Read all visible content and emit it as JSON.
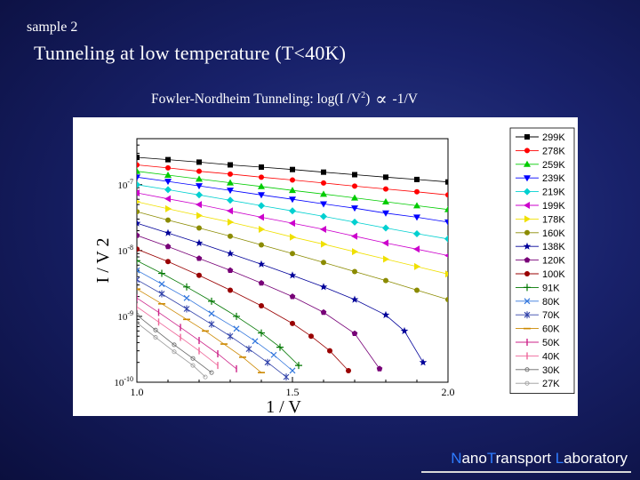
{
  "slide": {
    "label": "sample 2",
    "title": "Tunneling at low temperature (T<40K)",
    "subtitle_pre": "Fowler-Nordheim Tunneling:  log(I /V",
    "subtitle_sup": "2",
    "subtitle_post": ")",
    "subtitle_symbol": "∝",
    "subtitle_tail": "-1/V",
    "footer_n": "N",
    "footer_ano": "ano",
    "footer_t": "T",
    "footer_ransport": "ransport ",
    "footer_l": "L",
    "footer_aboratory": "aboratory"
  },
  "chart_data": {
    "type": "scatter",
    "title": "",
    "xlabel": "1 / V",
    "ylabel": "I / V 2",
    "y_scale": "log",
    "xlim": [
      1.0,
      2.0
    ],
    "ylim": [
      1e-10,
      5e-07
    ],
    "x_ticks": [
      "1.0",
      "1.5",
      "2.0"
    ],
    "y_ticks": [
      {
        "value": 1e-07,
        "label": "10",
        "exp": "-7"
      },
      {
        "value": 1e-08,
        "label": "10",
        "exp": "-8"
      },
      {
        "value": 1e-09,
        "label": "10",
        "exp": "-9"
      },
      {
        "value": 1e-10,
        "label": "10",
        "exp": "-10"
      }
    ],
    "legend_position": "right",
    "series": [
      {
        "name": "299K",
        "color": "#000000",
        "marker": "square",
        "x": [
          1.0,
          1.1,
          1.2,
          1.3,
          1.4,
          1.5,
          1.6,
          1.7,
          1.8,
          1.9,
          2.0
        ],
        "y": [
          2.6e-07,
          2.4e-07,
          2.2e-07,
          2e-07,
          1.85e-07,
          1.7e-07,
          1.55e-07,
          1.42e-07,
          1.3e-07,
          1.2e-07,
          1.1e-07
        ]
      },
      {
        "name": "278K",
        "color": "#ff0000",
        "marker": "circle",
        "x": [
          1.0,
          1.1,
          1.2,
          1.3,
          1.4,
          1.5,
          1.6,
          1.7,
          1.8,
          1.9,
          2.0
        ],
        "y": [
          2e-07,
          1.8e-07,
          1.6e-07,
          1.45e-07,
          1.3e-07,
          1.18e-07,
          1.06e-07,
          9.5e-08,
          8.6e-08,
          7.8e-08,
          7e-08
        ]
      },
      {
        "name": "259K",
        "color": "#00cc00",
        "marker": "triangle-up",
        "x": [
          1.0,
          1.1,
          1.2,
          1.3,
          1.4,
          1.5,
          1.6,
          1.7,
          1.8,
          1.9,
          2.0
        ],
        "y": [
          1.6e-07,
          1.4e-07,
          1.22e-07,
          1.07e-07,
          9.4e-08,
          8.2e-08,
          7.2e-08,
          6.3e-08,
          5.5e-08,
          4.8e-08,
          4.2e-08
        ]
      },
      {
        "name": "239K",
        "color": "#0000ff",
        "marker": "triangle-down",
        "x": [
          1.0,
          1.1,
          1.2,
          1.3,
          1.4,
          1.5,
          1.6,
          1.7,
          1.8,
          1.9,
          2.0
        ],
        "y": [
          1.3e-07,
          1.12e-07,
          9.6e-08,
          8.2e-08,
          7e-08,
          6e-08,
          5.1e-08,
          4.4e-08,
          3.7e-08,
          3.2e-08,
          2.7e-08
        ]
      },
      {
        "name": "219K",
        "color": "#00d0d0",
        "marker": "diamond",
        "x": [
          1.0,
          1.1,
          1.2,
          1.3,
          1.4,
          1.5,
          1.6,
          1.7,
          1.8,
          1.9,
          2.0
        ],
        "y": [
          1e-07,
          8.4e-08,
          7e-08,
          5.8e-08,
          4.8e-08,
          4e-08,
          3.3e-08,
          2.7e-08,
          2.2e-08,
          1.8e-08,
          1.5e-08
        ]
      },
      {
        "name": "199K",
        "color": "#cc00cc",
        "marker": "triangle-left",
        "x": [
          1.0,
          1.1,
          1.2,
          1.3,
          1.4,
          1.5,
          1.6,
          1.7,
          1.8,
          1.9,
          2.0
        ],
        "y": [
          7.5e-08,
          6.1e-08,
          5e-08,
          4e-08,
          3.2e-08,
          2.6e-08,
          2.1e-08,
          1.65e-08,
          1.3e-08,
          1.05e-08,
          8.4e-09
        ]
      },
      {
        "name": "178K",
        "color": "#f0e000",
        "marker": "triangle-right",
        "x": [
          1.0,
          1.1,
          1.2,
          1.3,
          1.4,
          1.5,
          1.6,
          1.7,
          1.8,
          1.9,
          2.0
        ],
        "y": [
          5.5e-08,
          4.3e-08,
          3.4e-08,
          2.7e-08,
          2.1e-08,
          1.6e-08,
          1.25e-08,
          9.6e-09,
          7.4e-09,
          5.7e-09,
          4.4e-09
        ]
      },
      {
        "name": "160K",
        "color": "#8b8b00",
        "marker": "circle",
        "x": [
          1.0,
          1.1,
          1.2,
          1.3,
          1.4,
          1.5,
          1.6,
          1.7,
          1.8,
          1.9,
          2.0
        ],
        "y": [
          3.9e-08,
          2.9e-08,
          2.2e-08,
          1.65e-08,
          1.22e-08,
          9e-09,
          6.6e-09,
          4.8e-09,
          3.5e-09,
          2.5e-09,
          1.8e-09
        ]
      },
      {
        "name": "138K",
        "color": "#000099",
        "marker": "star",
        "x": [
          1.0,
          1.1,
          1.2,
          1.3,
          1.4,
          1.5,
          1.6,
          1.7,
          1.8,
          1.86,
          1.92
        ],
        "y": [
          2.6e-08,
          1.85e-08,
          1.3e-08,
          9e-09,
          6.2e-09,
          4.2e-09,
          2.8e-09,
          1.8e-09,
          1.05e-09,
          6e-10,
          2e-10
        ]
      },
      {
        "name": "120K",
        "color": "#770077",
        "marker": "pentagon",
        "x": [
          1.0,
          1.1,
          1.2,
          1.3,
          1.4,
          1.5,
          1.6,
          1.7,
          1.78
        ],
        "y": [
          1.7e-08,
          1.15e-08,
          7.6e-09,
          5e-09,
          3.2e-09,
          2e-09,
          1.15e-09,
          5.5e-10,
          1.6e-10
        ]
      },
      {
        "name": "100K",
        "color": "#990000",
        "marker": "circle",
        "x": [
          1.0,
          1.1,
          1.2,
          1.3,
          1.4,
          1.5,
          1.56,
          1.62,
          1.68
        ],
        "y": [
          1.05e-08,
          6.8e-09,
          4.2e-09,
          2.5e-09,
          1.45e-09,
          7.8e-10,
          5e-10,
          3e-10,
          1.5e-10
        ]
      },
      {
        "name": "91K",
        "color": "#007700",
        "marker": "plus",
        "x": [
          1.0,
          1.08,
          1.16,
          1.24,
          1.32,
          1.4,
          1.46,
          1.52
        ],
        "y": [
          7e-09,
          4.5e-09,
          2.8e-09,
          1.7e-09,
          1e-09,
          5.6e-10,
          3.4e-10,
          1.8e-10
        ]
      },
      {
        "name": "80K",
        "color": "#3377dd",
        "marker": "x",
        "x": [
          1.0,
          1.08,
          1.16,
          1.24,
          1.32,
          1.38,
          1.44,
          1.5
        ],
        "y": [
          5e-09,
          3.1e-09,
          1.9e-09,
          1.1e-09,
          6.5e-10,
          4.2e-10,
          2.6e-10,
          1.5e-10
        ]
      },
      {
        "name": "70K",
        "color": "#3344aa",
        "marker": "asterisk",
        "x": [
          1.0,
          1.08,
          1.16,
          1.24,
          1.3,
          1.36,
          1.42,
          1.48
        ],
        "y": [
          3.6e-09,
          2.2e-09,
          1.3e-09,
          7.6e-10,
          5e-10,
          3.2e-10,
          2e-10,
          1.2e-10
        ]
      },
      {
        "name": "60K",
        "color": "#cc8800",
        "marker": "dash",
        "x": [
          1.0,
          1.08,
          1.16,
          1.22,
          1.28,
          1.34,
          1.4
        ],
        "y": [
          2.6e-09,
          1.55e-09,
          9e-10,
          6e-10,
          3.8e-10,
          2.4e-10,
          1.4e-10
        ]
      },
      {
        "name": "50K",
        "color": "#cc2288",
        "marker": "vline",
        "x": [
          1.0,
          1.07,
          1.14,
          1.2,
          1.26,
          1.32
        ],
        "y": [
          1.9e-09,
          1.15e-09,
          6.8e-10,
          4.3e-10,
          2.7e-10,
          1.6e-10
        ]
      },
      {
        "name": "40K",
        "color": "#ee6699",
        "marker": "vline",
        "x": [
          1.0,
          1.07,
          1.14,
          1.2,
          1.26
        ],
        "y": [
          1.4e-09,
          8.2e-10,
          4.8e-10,
          3e-10,
          1.8e-10
        ]
      },
      {
        "name": "30K",
        "color": "#666666",
        "marker": "text",
        "x": [
          1.0,
          1.06,
          1.12,
          1.18,
          1.24
        ],
        "y": [
          1.05e-09,
          6.2e-10,
          3.7e-10,
          2.3e-10,
          1.4e-10
        ]
      },
      {
        "name": "27K",
        "color": "#999999",
        "marker": "text",
        "x": [
          1.0,
          1.06,
          1.12,
          1.18,
          1.22
        ],
        "y": [
          8e-10,
          4.8e-10,
          2.9e-10,
          1.8e-10,
          1.2e-10
        ]
      }
    ]
  }
}
